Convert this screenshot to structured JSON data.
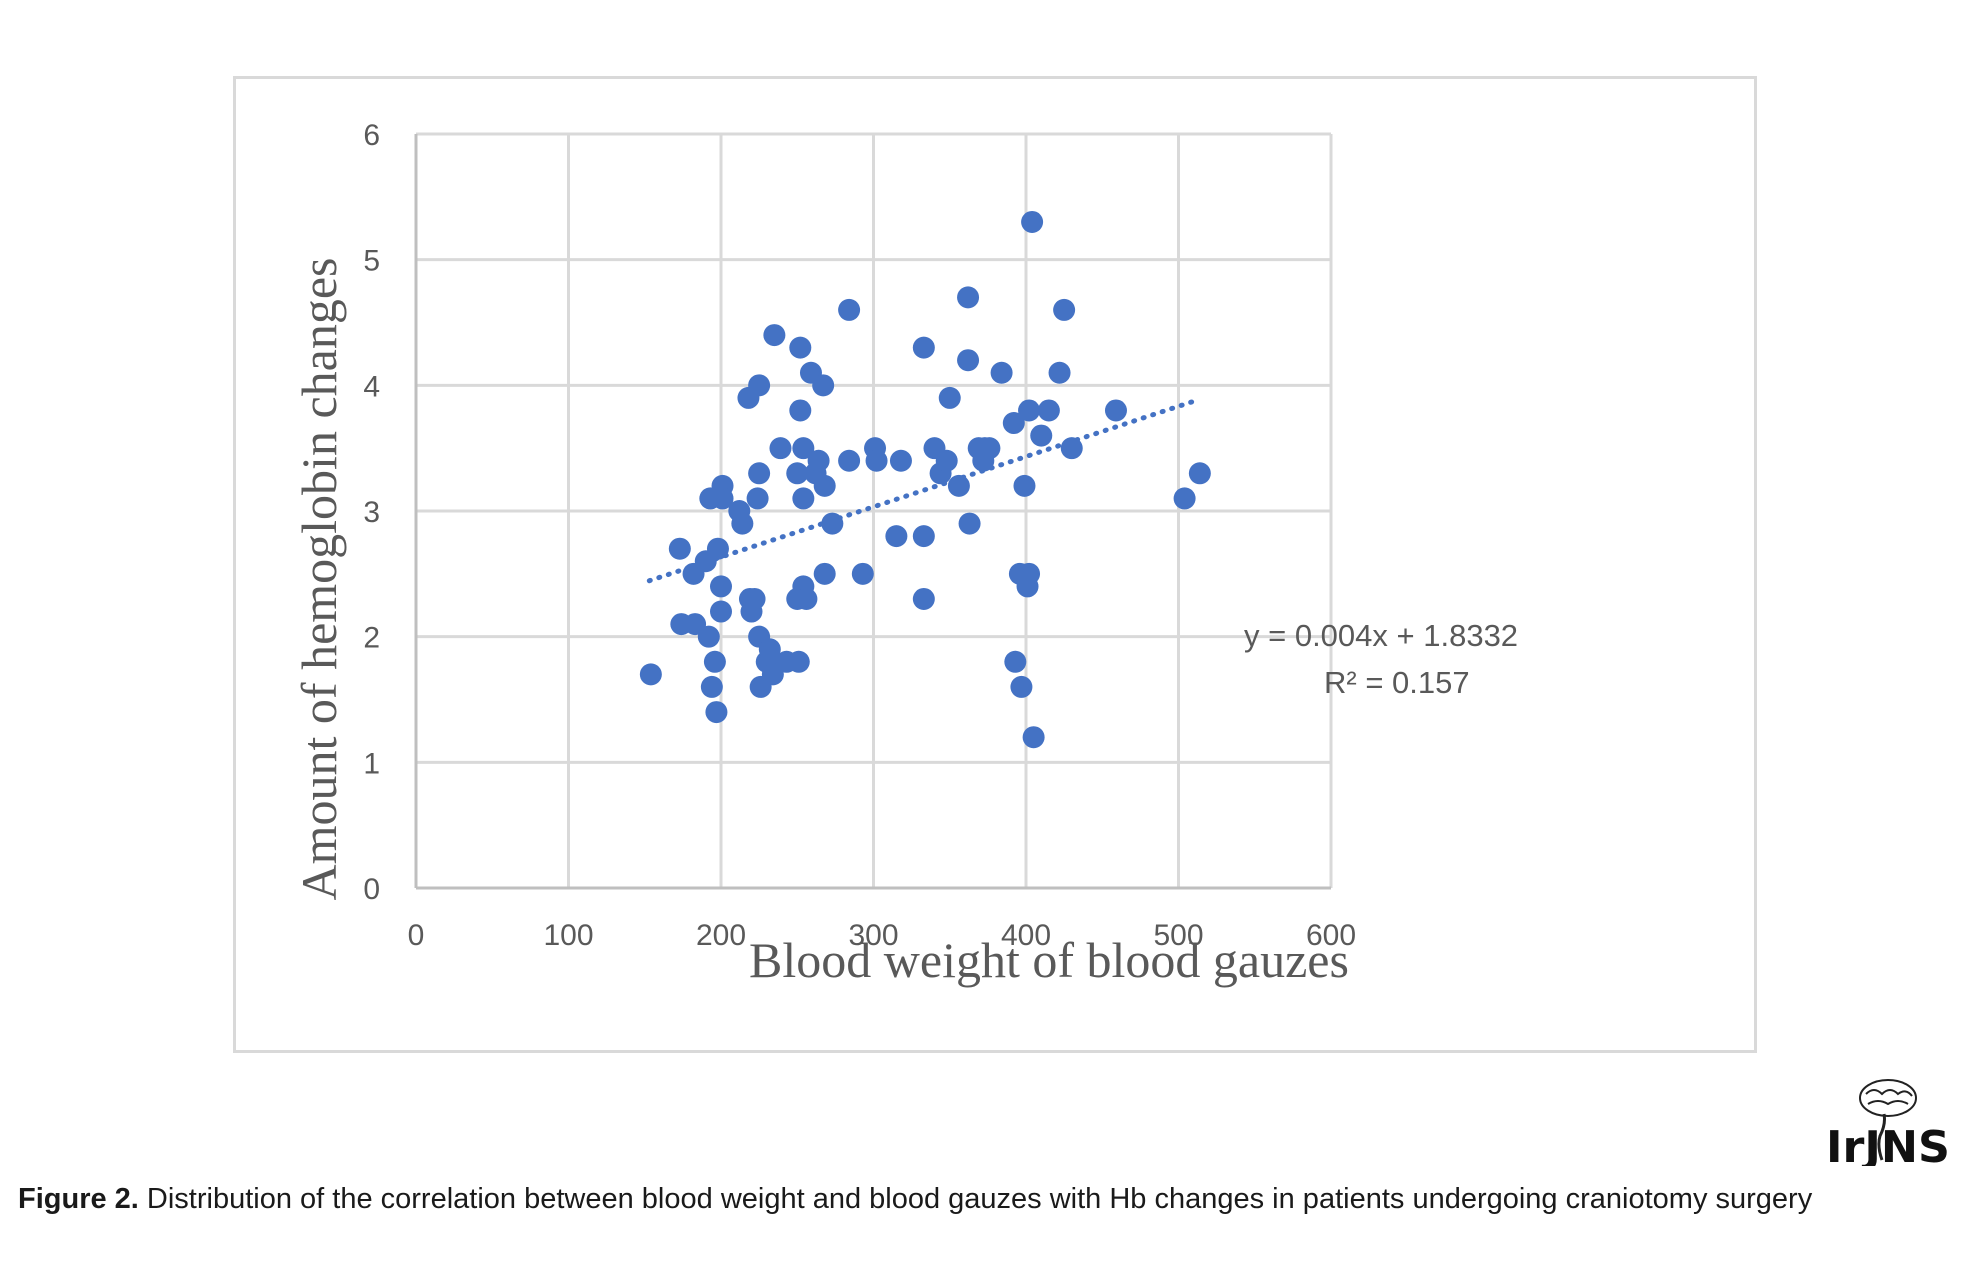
{
  "chart_data": {
    "type": "scatter",
    "xlabel": "Blood weight of blood gauzes",
    "ylabel": "Amount of hemoglobin changes",
    "xlim": [
      0,
      600
    ],
    "ylim": [
      0,
      6
    ],
    "x_ticks": [
      "0",
      "100",
      "200",
      "300",
      "400",
      "500",
      "600"
    ],
    "y_ticks": [
      "0",
      "1",
      "2",
      "3",
      "4",
      "5",
      "6"
    ],
    "grid": true,
    "marker_color": "#4472C4",
    "trendline": {
      "type": "linear",
      "slope": 0.004,
      "intercept": 1.8332,
      "x_range": [
        153,
        513
      ],
      "style": "dotted",
      "color": "#4472C4",
      "equation": "y = 0.004x + 1.8332",
      "r_squared": "R² = 0.157"
    },
    "points": [
      [
        154,
        1.7
      ],
      [
        173,
        2.7
      ],
      [
        174,
        2.1
      ],
      [
        182,
        2.5
      ],
      [
        183,
        2.1
      ],
      [
        190,
        2.6
      ],
      [
        192,
        2.0
      ],
      [
        193,
        3.1
      ],
      [
        194,
        1.6
      ],
      [
        196,
        1.8
      ],
      [
        197,
        1.4
      ],
      [
        198,
        2.7
      ],
      [
        200,
        2.2
      ],
      [
        200,
        2.4
      ],
      [
        201,
        3.2
      ],
      [
        201,
        3.1
      ],
      [
        212,
        3.0
      ],
      [
        214,
        2.9
      ],
      [
        218,
        3.9
      ],
      [
        219,
        2.3
      ],
      [
        220,
        2.2
      ],
      [
        222,
        2.3
      ],
      [
        224,
        3.1
      ],
      [
        225,
        4.0
      ],
      [
        225,
        3.3
      ],
      [
        225,
        2.0
      ],
      [
        226,
        1.6
      ],
      [
        230,
        1.8
      ],
      [
        232,
        1.9
      ],
      [
        234,
        1.7
      ],
      [
        235,
        4.4
      ],
      [
        239,
        3.5
      ],
      [
        243,
        1.8
      ],
      [
        250,
        3.3
      ],
      [
        250,
        2.3
      ],
      [
        251,
        1.8
      ],
      [
        252,
        4.3
      ],
      [
        252,
        3.8
      ],
      [
        254,
        3.5
      ],
      [
        254,
        3.1
      ],
      [
        254,
        2.4
      ],
      [
        256,
        2.3
      ],
      [
        259,
        4.1
      ],
      [
        262,
        3.3
      ],
      [
        264,
        3.4
      ],
      [
        267,
        4.0
      ],
      [
        268,
        3.2
      ],
      [
        268,
        2.5
      ],
      [
        273,
        2.9
      ],
      [
        284,
        4.6
      ],
      [
        284,
        3.4
      ],
      [
        293,
        2.5
      ],
      [
        301,
        3.5
      ],
      [
        302,
        3.4
      ],
      [
        315,
        2.8
      ],
      [
        318,
        3.4
      ],
      [
        333,
        4.3
      ],
      [
        333,
        2.8
      ],
      [
        333,
        2.3
      ],
      [
        340,
        3.5
      ],
      [
        344,
        3.3
      ],
      [
        348,
        3.4
      ],
      [
        350,
        3.9
      ],
      [
        356,
        3.2
      ],
      [
        362,
        4.7
      ],
      [
        362,
        4.2
      ],
      [
        363,
        2.9
      ],
      [
        369,
        3.5
      ],
      [
        372,
        3.4
      ],
      [
        373,
        3.5
      ],
      [
        376,
        3.5
      ],
      [
        384,
        4.1
      ],
      [
        392,
        3.7
      ],
      [
        393,
        1.8
      ],
      [
        396,
        2.5
      ],
      [
        397,
        1.6
      ],
      [
        399,
        3.2
      ],
      [
        401,
        2.4
      ],
      [
        402,
        2.5
      ],
      [
        402,
        3.8
      ],
      [
        404,
        5.3
      ],
      [
        405,
        1.2
      ],
      [
        410,
        3.6
      ],
      [
        415,
        3.8
      ],
      [
        422,
        4.1
      ],
      [
        425,
        4.6
      ],
      [
        430,
        3.5
      ],
      [
        459,
        3.8
      ],
      [
        504,
        3.1
      ],
      [
        514,
        3.3
      ]
    ]
  },
  "caption": {
    "label": "Figure 2.",
    "text": " Distribution of the correlation between blood weight and blood gauzes with Hb changes in patients undergoing craniotomy surgery"
  },
  "logo": {
    "text": "IrJNS"
  }
}
